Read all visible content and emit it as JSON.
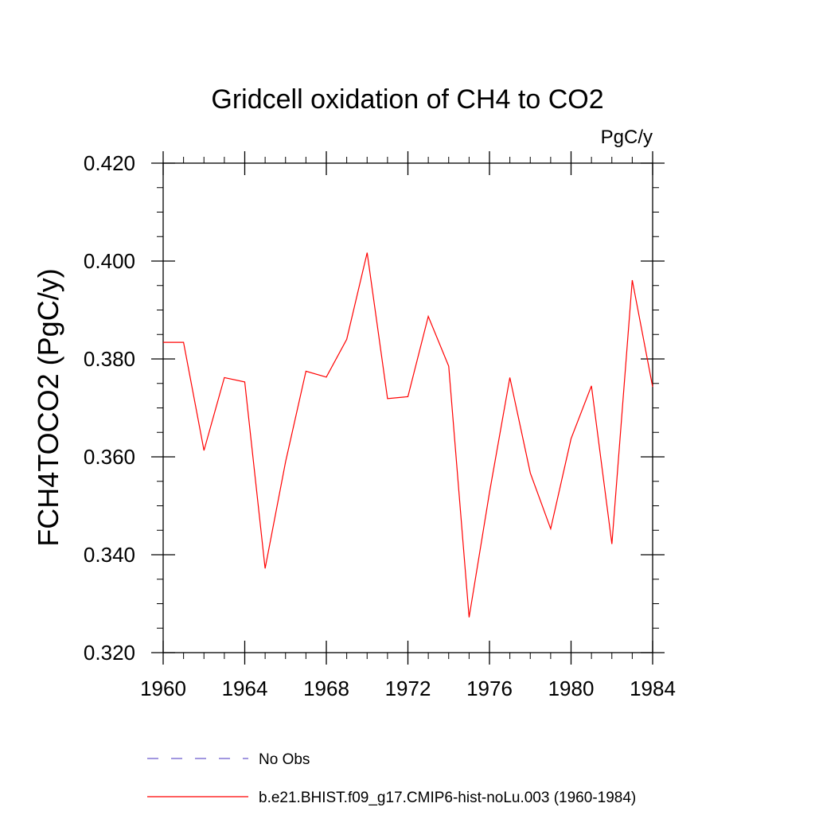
{
  "chart_data": {
    "type": "line",
    "title": "Gridcell oxidation of CH4 to CO2",
    "units": "PgC/y",
    "ylabel": "FCH4TOCO2  (PgC/y)",
    "xlabel": "",
    "xlim": [
      1960,
      1984
    ],
    "ylim": [
      0.32,
      0.42
    ],
    "x_ticks": [
      "1960",
      "1964",
      "1968",
      "1972",
      "1976",
      "1980",
      "1984"
    ],
    "y_ticks": [
      "0.320",
      "0.340",
      "0.360",
      "0.380",
      "0.400",
      "0.420"
    ],
    "grid": false,
    "legend_position": "bottom",
    "series": [
      {
        "name": "b.e21.BHIST.f09_g17.CMIP6-hist-noLu.003 (1960-1984)",
        "color": "#ff0000",
        "style": "solid",
        "x": [
          1960,
          1961,
          1962,
          1963,
          1964,
          1965,
          1966,
          1967,
          1968,
          1969,
          1970,
          1971,
          1972,
          1973,
          1974,
          1975,
          1976,
          1977,
          1978,
          1979,
          1980,
          1981,
          1982,
          1983,
          1984
        ],
        "values": [
          0.3834,
          0.3834,
          0.3613,
          0.3762,
          0.3753,
          0.3372,
          0.359,
          0.3775,
          0.3763,
          0.384,
          0.4017,
          0.3719,
          0.3723,
          0.3887,
          0.3785,
          0.3272,
          0.3527,
          0.3762,
          0.3567,
          0.3453,
          0.3637,
          0.3745,
          0.3422,
          0.3961,
          0.3743
        ]
      }
    ],
    "legend": [
      {
        "label": "No Obs",
        "color": "#6a5acd",
        "style": "dashed"
      },
      {
        "label": "b.e21.BHIST.f09_g17.CMIP6-hist-noLu.003 (1960-1984)",
        "color": "#ff0000",
        "style": "solid"
      }
    ]
  }
}
